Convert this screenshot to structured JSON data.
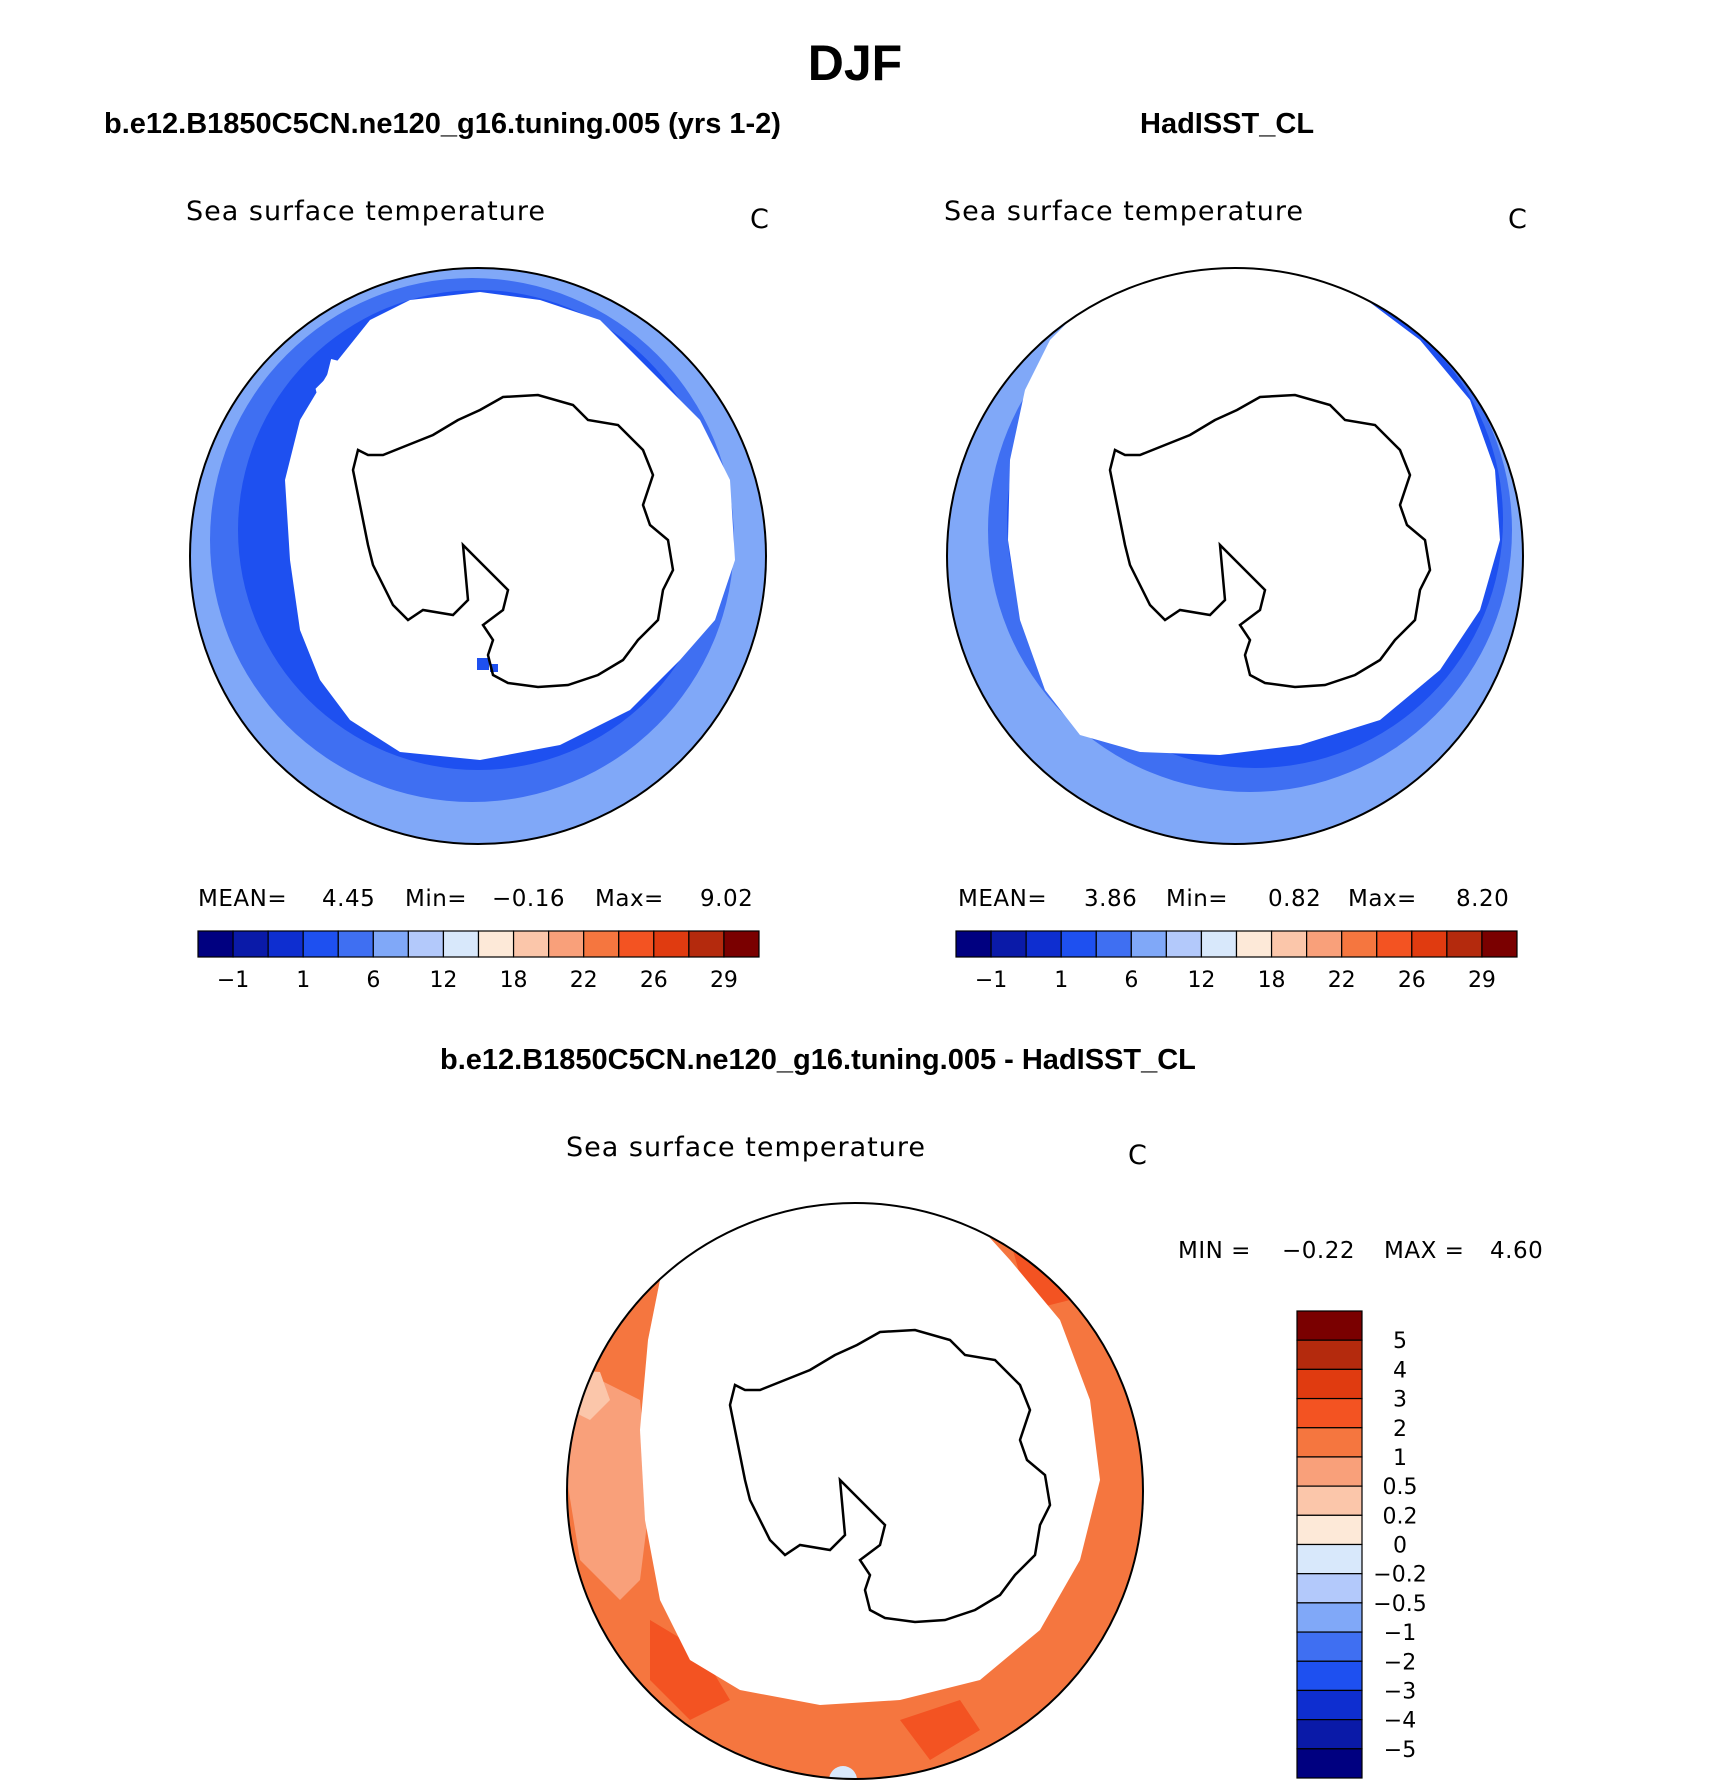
{
  "season": "DJF",
  "panels": [
    {
      "title": "b.e12.B1850C5CN.ne120_g16.tuning.005 (yrs 1-2)",
      "variable": "Sea surface temperature",
      "units": "C",
      "stats": {
        "mean_label": "MEAN=",
        "mean": "4.45",
        "min_label": "Min=",
        "min": "−0.16",
        "max_label": "Max=",
        "max": "9.02"
      }
    },
    {
      "title": "HadISST_CL",
      "variable": "Sea surface temperature",
      "units": "C",
      "stats": {
        "mean_label": "MEAN=",
        "mean": "3.86",
        "min_label": "Min=",
        "min": "0.82",
        "max_label": "Max=",
        "max": "8.20"
      }
    },
    {
      "title": "b.e12.B1850C5CN.ne120_g16.tuning.005 - HadISST_CL",
      "variable": "Sea surface temperature",
      "units": "C",
      "stats": {
        "min_label": "MIN =",
        "min": "−0.22",
        "max_label": "MAX =",
        "max": "4.60"
      }
    }
  ],
  "colorbar_sst": {
    "colors": [
      "#000080",
      "#0a1aa8",
      "#0e2ed0",
      "#1e50f0",
      "#3f6ff2",
      "#80a8f8",
      "#b3c9fb",
      "#d8e8fb",
      "#fde9d8",
      "#fbc6aa",
      "#f9a07a",
      "#f5763f",
      "#f35322",
      "#e03b10",
      "#b42a0d",
      "#7a0000"
    ],
    "labels": [
      "−1",
      "1",
      "6",
      "12",
      "18",
      "22",
      "26",
      "29"
    ]
  },
  "colorbar_diff": {
    "colors": [
      "#000080",
      "#0a1aa8",
      "#0e2ed0",
      "#1e50f0",
      "#3f6ff2",
      "#80a8f8",
      "#b3c9fb",
      "#d8e8fb",
      "#fde9d8",
      "#fbc6aa",
      "#f9a07a",
      "#f5763f",
      "#f35322",
      "#e03b10",
      "#b42a0d",
      "#7a0000"
    ],
    "labels": [
      "−5",
      "−4",
      "−3",
      "−2",
      "−1",
      "−0.5",
      "−0.2",
      "0",
      "0.2",
      "0.5",
      "1",
      "2",
      "3",
      "4",
      "5"
    ]
  }
}
